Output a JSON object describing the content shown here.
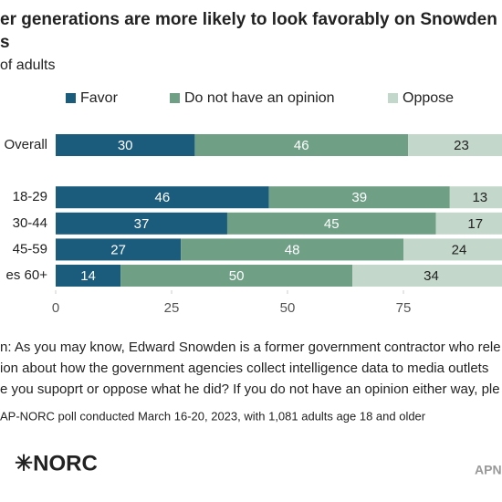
{
  "chart_data": {
    "type": "stacked-bar-horizontal",
    "title": [
      "er generations are more likely to look favorably on Snowden",
      "s"
    ],
    "subtitle": "of adults",
    "categories": [
      "Overall",
      null,
      "18-29",
      "30-44",
      "45-59",
      "es 60+"
    ],
    "series": [
      {
        "name": "Favor",
        "color": "#1b5b7c",
        "values": [
          30,
          null,
          46,
          37,
          27,
          14
        ]
      },
      {
        "name": "Do not have an opinion",
        "color": "#6fa086",
        "values": [
          46,
          null,
          39,
          45,
          48,
          50
        ]
      },
      {
        "name": "Oppose",
        "color": "#c3d7ca",
        "values": [
          23,
          null,
          13,
          17,
          24,
          34
        ]
      }
    ],
    "xlim": [
      0,
      100
    ],
    "xticks": [
      0,
      25,
      50,
      75
    ],
    "note": [
      "n: As you may know, Edward Snowden is a former government contractor who rele",
      "ion about how the government agencies collect intelligence data to media outlets",
      "e you supoprt or oppose what he did? If you do not have an opinion either way, ple"
    ],
    "source": "AP-NORC poll conducted March 16-20, 2023, with 1,081 adults age 18 and older",
    "logo": "✳NORC",
    "footer_right": "APN"
  }
}
